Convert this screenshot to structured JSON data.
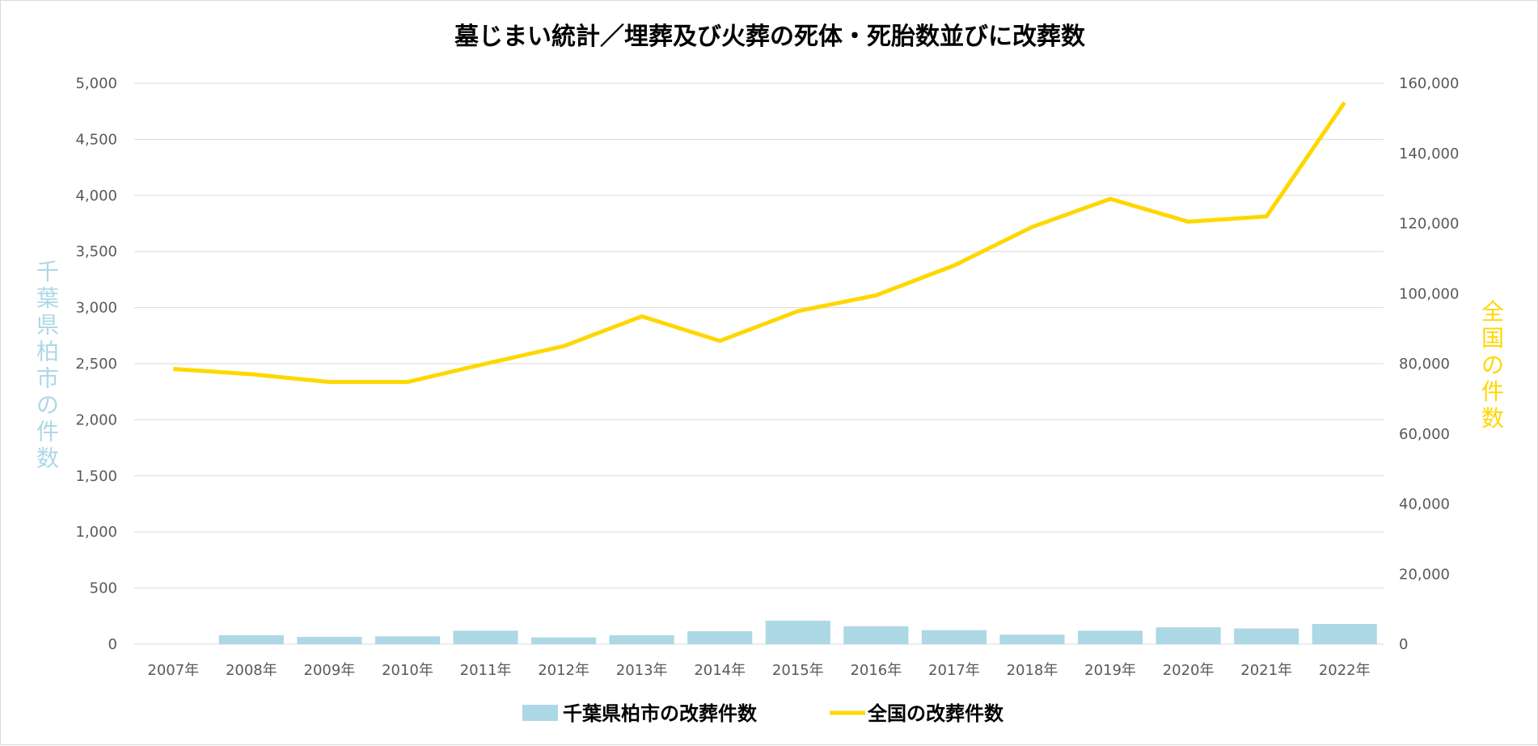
{
  "chart_data": {
    "type": "bar+line",
    "title": "墓じまい統計／埋葬及び火葬の死体・死胎数並びに改葬数",
    "categories": [
      "2007年",
      "2008年",
      "2009年",
      "2010年",
      "2011年",
      "2012年",
      "2013年",
      "2014年",
      "2015年",
      "2016年",
      "2017年",
      "2018年",
      "2019年",
      "2020年",
      "2021年",
      "2022年"
    ],
    "y_left": {
      "label": "千葉県柏市の件数",
      "ylim": [
        0,
        5000
      ],
      "ticks": [
        "0",
        "500",
        "1,000",
        "1,500",
        "2,000",
        "2,500",
        "3,000",
        "3,500",
        "4,000",
        "4,500",
        "5,000"
      ]
    },
    "y_right": {
      "label": "全国の件数",
      "ylim": [
        0,
        160000
      ],
      "ticks": [
        "0",
        "20,000",
        "40,000",
        "60,000",
        "80,000",
        "100,000",
        "120,000",
        "140,000",
        "160,000"
      ]
    },
    "series": [
      {
        "name": "千葉県柏市の改葬件数",
        "type": "bar",
        "axis": "left",
        "color": "#add8e6",
        "values": [
          0,
          80,
          65,
          70,
          120,
          60,
          80,
          115,
          210,
          160,
          125,
          85,
          120,
          150,
          140,
          180
        ]
      },
      {
        "name": "全国の改葬件数",
        "type": "line",
        "axis": "right",
        "color": "#ffd700",
        "values": [
          78500,
          77000,
          74800,
          74800,
          80000,
          85000,
          93500,
          86500,
          95000,
          99500,
          108000,
          119000,
          127000,
          120500,
          122000,
          154500
        ]
      }
    ],
    "grid": true,
    "legend_position": "bottom"
  }
}
